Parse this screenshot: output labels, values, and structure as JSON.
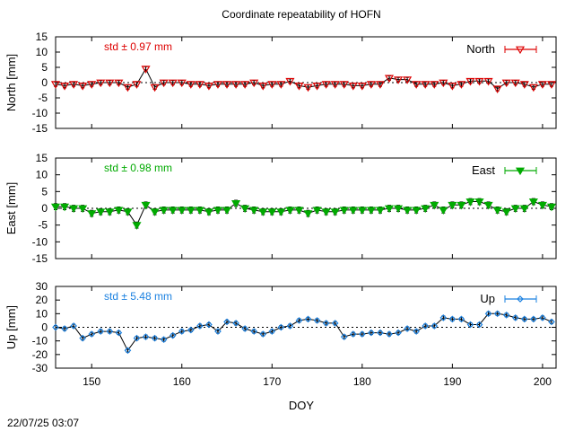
{
  "title": "Coordinate repeatability of HOFN",
  "xlabel": "DOY",
  "timestamp": "22/07/25 03:07",
  "chart_data": [
    {
      "type": "line",
      "ylabel": "North [mm]",
      "ylim": [
        -15,
        15
      ],
      "yticks": [
        15,
        10,
        5,
        0,
        -5,
        -10,
        -15
      ],
      "xlim": [
        146,
        201.5
      ],
      "xticks": [
        150,
        160,
        170,
        180,
        190,
        200
      ],
      "grid": false,
      "legend": "top-right",
      "annotation": "std ± 0.97 mm",
      "color": "#dd0000",
      "marker": "triangle-down-open",
      "series": [
        {
          "name": "North",
          "x": [
            146,
            147,
            148,
            149,
            150,
            151,
            152,
            153,
            154,
            155,
            156,
            157,
            158,
            159,
            160,
            161,
            162,
            163,
            164,
            165,
            166,
            167,
            168,
            169,
            170,
            171,
            172,
            173,
            174,
            175,
            176,
            177,
            178,
            179,
            180,
            181,
            182,
            183,
            184,
            185,
            186,
            187,
            188,
            189,
            190,
            191,
            192,
            193,
            194,
            195,
            196,
            197,
            198,
            199,
            200,
            201
          ],
          "y": [
            -0.5,
            -1,
            -0.5,
            -1,
            -0.5,
            0,
            0,
            0,
            -1.5,
            -0.5,
            4.5,
            -1.5,
            0,
            0,
            0,
            -0.5,
            -0.5,
            -1,
            -0.5,
            -0.5,
            -0.5,
            -0.5,
            0,
            -1,
            -0.5,
            -0.5,
            0.5,
            -1,
            -1.5,
            -1,
            -0.5,
            -0.5,
            -0.5,
            -1,
            -1,
            -0.5,
            -0.5,
            1.5,
            1,
            1,
            -0.5,
            -0.5,
            -0.5,
            0,
            -1,
            -0.5,
            0.5,
            0.5,
            0.5,
            -2,
            0,
            0,
            -0.5,
            -1.5,
            -0.5,
            -0.5
          ],
          "err": 0.7
        }
      ]
    },
    {
      "type": "line",
      "ylabel": "East [mm]",
      "ylim": [
        -15,
        15
      ],
      "yticks": [
        15,
        10,
        5,
        0,
        -5,
        -10,
        -15
      ],
      "xlim": [
        146,
        201.5
      ],
      "xticks": [
        150,
        160,
        170,
        180,
        190,
        200
      ],
      "grid": false,
      "legend": "top-right",
      "annotation": "std ± 0.98 mm",
      "color": "#00aa00",
      "marker": "triangle-down-filled",
      "series": [
        {
          "name": "East",
          "x": [
            146,
            147,
            148,
            149,
            150,
            151,
            152,
            153,
            154,
            155,
            156,
            157,
            158,
            159,
            160,
            161,
            162,
            163,
            164,
            165,
            166,
            167,
            168,
            169,
            170,
            171,
            172,
            173,
            174,
            175,
            176,
            177,
            178,
            179,
            180,
            181,
            182,
            183,
            184,
            185,
            186,
            187,
            188,
            189,
            190,
            191,
            192,
            193,
            194,
            195,
            196,
            197,
            198,
            199,
            200,
            201
          ],
          "y": [
            0.5,
            0.5,
            0,
            0,
            -1.5,
            -1,
            -1,
            -0.5,
            -1,
            -5,
            1,
            -1,
            -0.5,
            -0.5,
            -0.5,
            -0.5,
            -0.5,
            -1,
            -0.5,
            -0.5,
            1.5,
            0,
            -0.5,
            -1,
            -1,
            -1,
            -0.5,
            -0.5,
            -1.5,
            -0.5,
            -1,
            -1,
            -0.5,
            -0.5,
            -0.5,
            -0.5,
            -0.5,
            0,
            0,
            -0.5,
            -0.5,
            0,
            1,
            -0.5,
            1,
            1,
            2,
            2,
            1,
            -0.5,
            -1,
            0,
            0,
            2,
            1,
            0.5
          ],
          "err": 0.9
        }
      ]
    },
    {
      "type": "line",
      "ylabel": "Up [mm]",
      "ylim": [
        -30,
        30
      ],
      "yticks": [
        30,
        20,
        10,
        0,
        -10,
        -20,
        -30
      ],
      "xlim": [
        146,
        201.5
      ],
      "xticks": [
        150,
        160,
        170,
        180,
        190,
        200
      ],
      "grid": false,
      "legend": "top-right",
      "annotation": "std ± 5.48 mm",
      "color": "#1a80e0",
      "marker": "diamond-open",
      "series": [
        {
          "name": "Up",
          "x": [
            146,
            147,
            148,
            149,
            150,
            151,
            152,
            153,
            154,
            155,
            156,
            157,
            158,
            159,
            160,
            161,
            162,
            163,
            164,
            165,
            166,
            167,
            168,
            169,
            170,
            171,
            172,
            173,
            174,
            175,
            176,
            177,
            178,
            179,
            180,
            181,
            182,
            183,
            184,
            185,
            186,
            187,
            188,
            189,
            190,
            191,
            192,
            193,
            194,
            195,
            196,
            197,
            198,
            199,
            200,
            201
          ],
          "y": [
            0,
            -1,
            1,
            -8,
            -5,
            -3,
            -3,
            -4,
            -17,
            -8,
            -7,
            -8,
            -9,
            -6,
            -3,
            -2,
            1,
            2,
            -3,
            4,
            3,
            -1,
            -3,
            -5,
            -3,
            0,
            1,
            5,
            6,
            5,
            3,
            3,
            -7,
            -5,
            -5,
            -4,
            -4,
            -5,
            -4,
            -1,
            -3,
            1,
            1,
            7,
            6,
            6,
            2,
            2,
            10,
            10,
            9,
            7,
            6,
            6,
            7,
            4
          ],
          "err": 1.3
        }
      ]
    }
  ]
}
